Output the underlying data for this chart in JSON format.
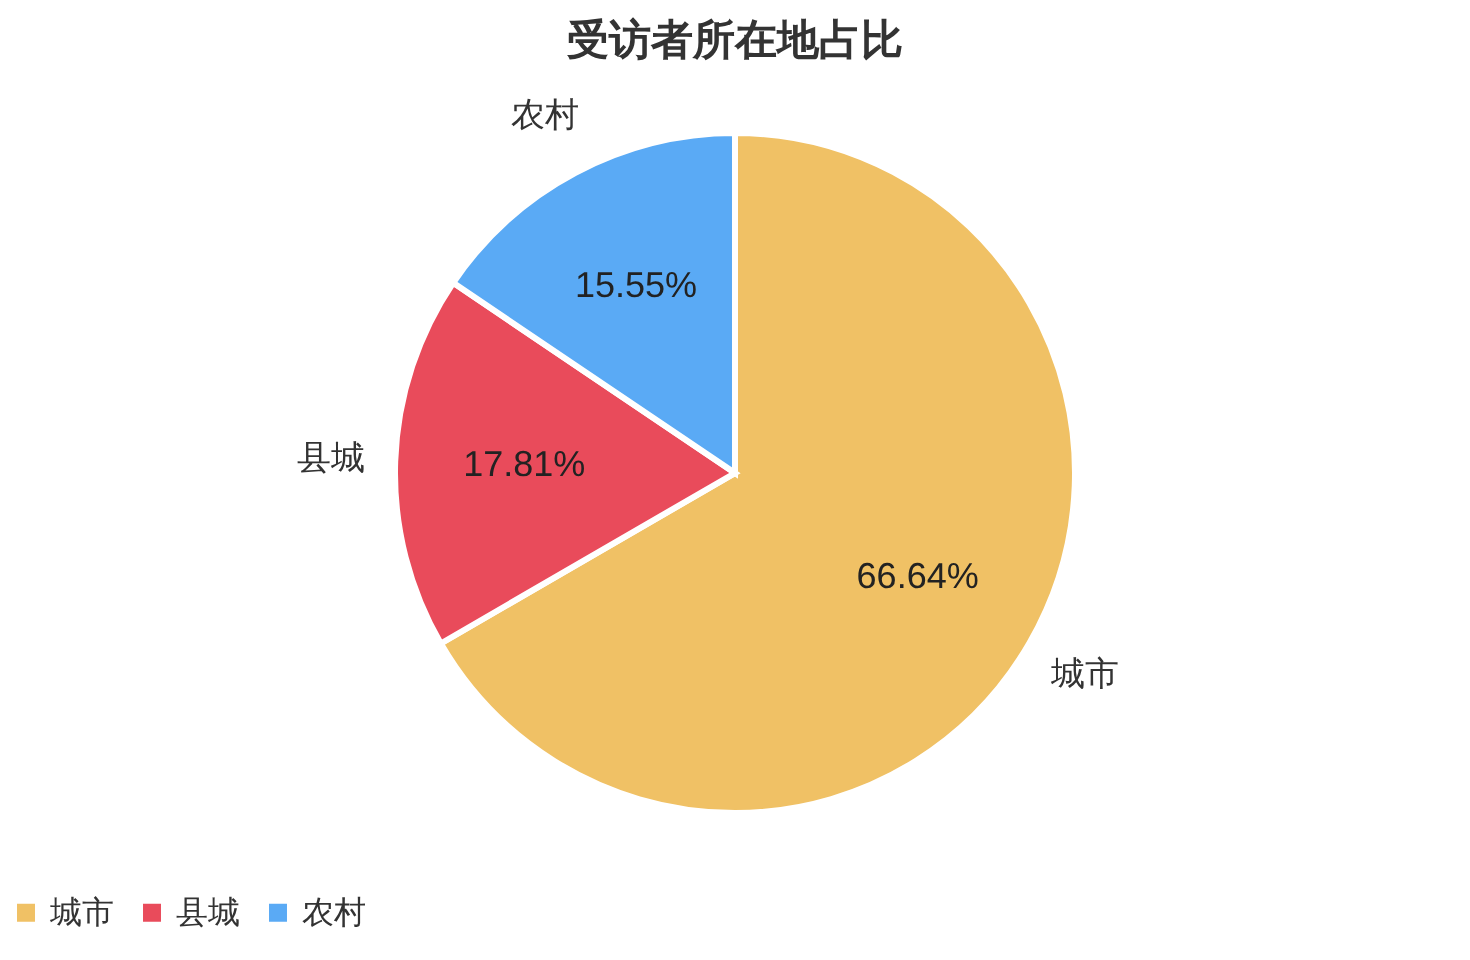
{
  "chart_data": {
    "type": "pie",
    "title": "受访者所在地占比",
    "categories": [
      "城市",
      "县城",
      "农村"
    ],
    "values": [
      66.64,
      17.81,
      15.55
    ],
    "value_labels": [
      "66.64%",
      "17.81%",
      "15.55%"
    ],
    "colors": [
      "#f0c165",
      "#e94b5b",
      "#5aaaf5"
    ],
    "legend": "bottom"
  }
}
